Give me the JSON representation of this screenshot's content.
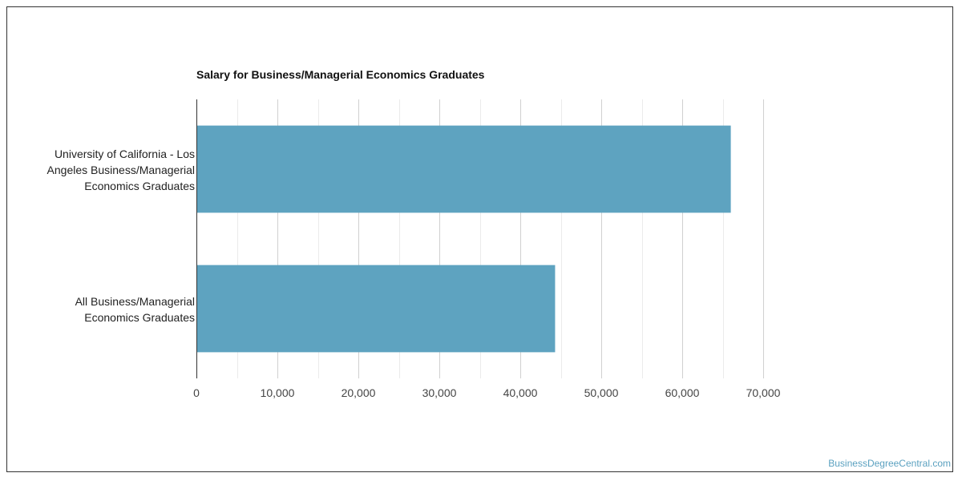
{
  "chart_data": {
    "type": "bar",
    "orientation": "horizontal",
    "title": "Salary for Business/Managerial Economics Graduates",
    "categories": [
      "University of California - Los Angeles Business/Managerial Economics Graduates",
      "All Business/Managerial Economics Graduates"
    ],
    "values": [
      66000,
      44300
    ],
    "xlim": [
      0,
      70000
    ],
    "xticks": [
      0,
      10000,
      20000,
      30000,
      40000,
      50000,
      60000,
      70000
    ],
    "xtick_labels": [
      "0",
      "10,000",
      "20,000",
      "30,000",
      "40,000",
      "50,000",
      "60,000",
      "70,000"
    ],
    "xlabel": "",
    "ylabel": "",
    "grid": true,
    "bar_color": "#5ea3c0"
  },
  "footer": {
    "watermark": "BusinessDegreeCentral.com"
  }
}
